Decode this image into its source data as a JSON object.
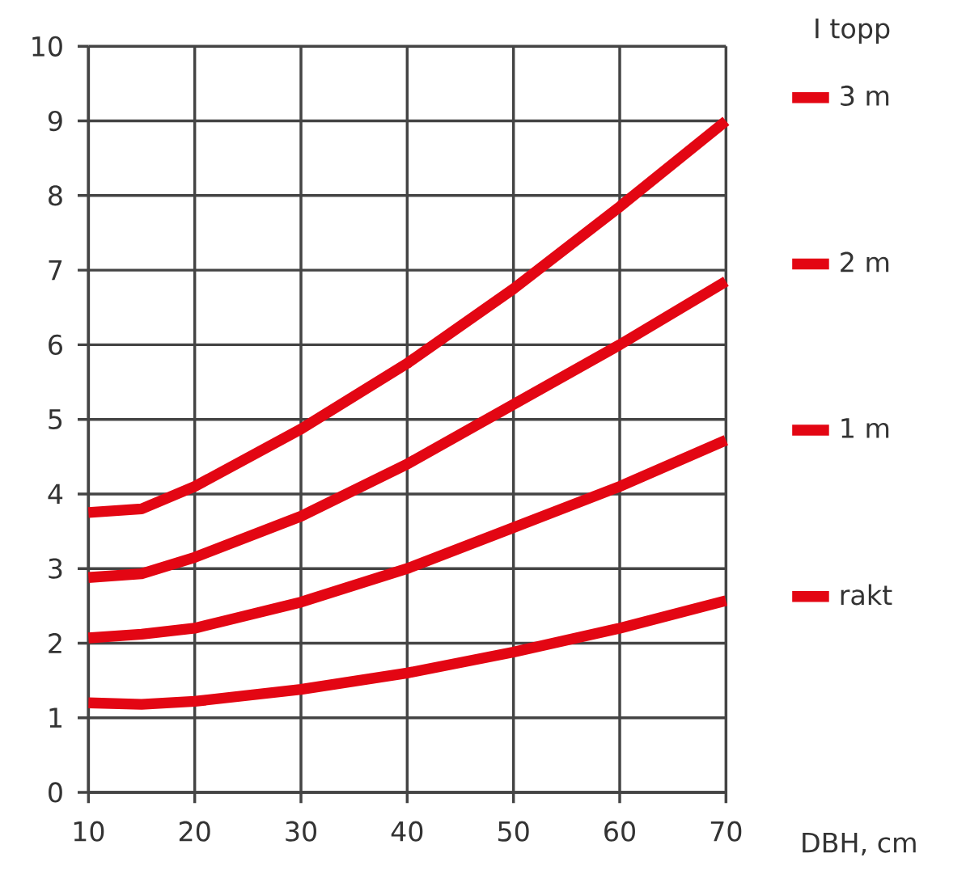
{
  "chart_data": {
    "type": "line",
    "xlabel": "DBH, cm",
    "legend_title": "I topp",
    "x": [
      10,
      15,
      20,
      30,
      40,
      50,
      60,
      70
    ],
    "series": [
      {
        "name": "3 m",
        "color": "#e30613",
        "values": [
          3.75,
          3.8,
          4.1,
          4.87,
          5.75,
          6.75,
          7.85,
          9.0
        ]
      },
      {
        "name": "2 m",
        "color": "#e30613",
        "values": [
          2.88,
          2.93,
          3.15,
          3.7,
          4.4,
          5.2,
          6.0,
          6.85
        ]
      },
      {
        "name": "1 m",
        "color": "#e30613",
        "values": [
          2.07,
          2.12,
          2.2,
          2.55,
          3.0,
          3.55,
          4.1,
          4.72
        ]
      },
      {
        "name": "rakt",
        "color": "#e30613",
        "values": [
          1.2,
          1.18,
          1.22,
          1.38,
          1.6,
          1.88,
          2.2,
          2.57
        ]
      }
    ],
    "xlim": [
      10,
      70
    ],
    "ylim": [
      0,
      10
    ],
    "xticks": [
      10,
      20,
      30,
      40,
      50,
      60,
      70
    ],
    "yticks": [
      0,
      1,
      2,
      3,
      4,
      5,
      6,
      7,
      8,
      9,
      10
    ],
    "grid": true,
    "legend": "right",
    "marker": "none",
    "line_style": "solid"
  }
}
